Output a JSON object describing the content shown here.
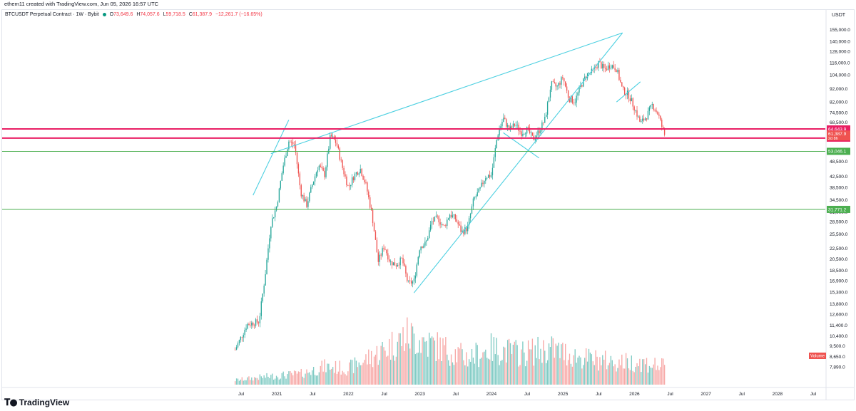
{
  "header": {
    "credit": "ethem11 created with TradingView.com, Jun 05, 2026 16:57 UTC"
  },
  "legend": {
    "symbol": "BTCUSDT Perpetual Contract · 1W · Bybit",
    "o_label": "O",
    "o_value": "73,649.6",
    "h_label": "H",
    "h_value": "74,057.6",
    "l_label": "L",
    "l_value": "59,718.5",
    "c_label": "C",
    "c_value": "61,387.9",
    "change": "−12,261.7 (−16.65%)"
  },
  "axis_unit": "USDT",
  "brand": {
    "name": "TradingView",
    "logo_icon": "tradingview-logo-icon"
  },
  "colors": {
    "up": "#26a69a",
    "down": "#ef5350",
    "trend": "#4dd0e1",
    "magenta": "#e91e63",
    "green_line": "#4caf50",
    "volume_label_bg": "#ef5350"
  },
  "chart_data": {
    "type": "candlestick",
    "y_scale": "log",
    "ylim": [
      7200,
      165000
    ],
    "x_range": [
      "2020-04",
      "2028-11"
    ],
    "y_ticks": [
      "155,000.0",
      "140,000.0",
      "128,000.0",
      "116,000.0",
      "104,000.0",
      "92,000.0",
      "82,000.0",
      "74,500.0",
      "68,500.0",
      "48,500.0",
      "42,500.0",
      "38,500.0",
      "34,500.0",
      "31,000.0",
      "28,500.0",
      "25,500.0",
      "22,500.0",
      "20,500.0",
      "18,500.0",
      "16,900.0",
      "15,300.0",
      "13,800.0",
      "12,600.0",
      "11,400.0",
      "10,400.0",
      "9,500.0",
      "8,650.0",
      "7,890.0"
    ],
    "y_tick_values": [
      155000,
      140000,
      128000,
      116000,
      104000,
      92000,
      82000,
      74500,
      68500,
      48500,
      42500,
      38500,
      34500,
      31000,
      28500,
      25500,
      22500,
      20500,
      18500,
      16900,
      15300,
      13800,
      12600,
      11400,
      10400,
      9500,
      8650,
      7890
    ],
    "x_ticks": [
      {
        "label": "Jul",
        "date": "2020-07"
      },
      {
        "label": "2021",
        "date": "2021-01"
      },
      {
        "label": "Jul",
        "date": "2021-07"
      },
      {
        "label": "2022",
        "date": "2022-01"
      },
      {
        "label": "Jul",
        "date": "2022-07"
      },
      {
        "label": "2023",
        "date": "2023-01"
      },
      {
        "label": "Jul",
        "date": "2023-07"
      },
      {
        "label": "2024",
        "date": "2024-01"
      },
      {
        "label": "Jul",
        "date": "2024-07"
      },
      {
        "label": "2025",
        "date": "2025-01"
      },
      {
        "label": "Jul",
        "date": "2025-07"
      },
      {
        "label": "2026",
        "date": "2026-01"
      },
      {
        "label": "Jul",
        "date": "2026-07"
      },
      {
        "label": "2027",
        "date": "2027-01"
      },
      {
        "label": "Jul",
        "date": "2027-07"
      },
      {
        "label": "2028",
        "date": "2028-01"
      },
      {
        "label": "Jul",
        "date": "2028-07"
      }
    ],
    "price_path": [
      [
        "2020-06",
        9200
      ],
      [
        "2020-08",
        11500
      ],
      [
        "2020-10",
        11800
      ],
      [
        "2020-11",
        17500
      ],
      [
        "2020-12",
        28000
      ],
      [
        "2021-01",
        33000
      ],
      [
        "2021-02",
        46000
      ],
      [
        "2021-03",
        58000
      ],
      [
        "2021-04",
        56000
      ],
      [
        "2021-05",
        37000
      ],
      [
        "2021-06",
        33000
      ],
      [
        "2021-07",
        40000
      ],
      [
        "2021-08",
        47000
      ],
      [
        "2021-09",
        43000
      ],
      [
        "2021-10",
        61000
      ],
      [
        "2021-11",
        57000
      ],
      [
        "2021-12",
        46000
      ],
      [
        "2022-01",
        38500
      ],
      [
        "2022-02",
        43000
      ],
      [
        "2022-03",
        45500
      ],
      [
        "2022-04",
        39000
      ],
      [
        "2022-05",
        30000
      ],
      [
        "2022-06",
        20000
      ],
      [
        "2022-07",
        23000
      ],
      [
        "2022-08",
        20000
      ],
      [
        "2022-09",
        19500
      ],
      [
        "2022-10",
        20500
      ],
      [
        "2022-11",
        16500
      ],
      [
        "2022-12",
        16800
      ],
      [
        "2023-01",
        23000
      ],
      [
        "2023-02",
        23500
      ],
      [
        "2023-03",
        28500
      ],
      [
        "2023-04",
        29500
      ],
      [
        "2023-05",
        27000
      ],
      [
        "2023-06",
        30500
      ],
      [
        "2023-07",
        29200
      ],
      [
        "2023-08",
        26000
      ],
      [
        "2023-09",
        27000
      ],
      [
        "2023-10",
        34500
      ],
      [
        "2023-11",
        37500
      ],
      [
        "2023-12",
        42500
      ],
      [
        "2024-01",
        43000
      ],
      [
        "2024-02",
        61000
      ],
      [
        "2024-03",
        71000
      ],
      [
        "2024-04",
        64000
      ],
      [
        "2024-05",
        67500
      ],
      [
        "2024-06",
        62500
      ],
      [
        "2024-07",
        64500
      ],
      [
        "2024-08",
        59000
      ],
      [
        "2024-09",
        63500
      ],
      [
        "2024-10",
        70500
      ],
      [
        "2024-11",
        96000
      ],
      [
        "2024-12",
        93500
      ],
      [
        "2025-01",
        102000
      ],
      [
        "2025-02",
        84500
      ],
      [
        "2025-03",
        82500
      ],
      [
        "2025-04",
        94500
      ],
      [
        "2025-05",
        104500
      ],
      [
        "2025-06",
        107500
      ],
      [
        "2025-07",
        116000
      ],
      [
        "2025-08",
        109000
      ],
      [
        "2025-09",
        114000
      ],
      [
        "2025-10",
        110000
      ],
      [
        "2025-11",
        91000
      ],
      [
        "2025-12",
        87500
      ],
      [
        "2026-01",
        78000
      ],
      [
        "2026-02",
        68000
      ],
      [
        "2026-03",
        72000
      ],
      [
        "2026-04",
        80000
      ],
      [
        "2026-05",
        73600
      ],
      [
        "2026-06",
        61388
      ]
    ],
    "volume_approx": [
      [
        "2020-06",
        0.05
      ],
      [
        "2020-10",
        0.08
      ],
      [
        "2021-01",
        0.1
      ],
      [
        "2021-05",
        0.12
      ],
      [
        "2021-09",
        0.2
      ],
      [
        "2022-01",
        0.18
      ],
      [
        "2022-06",
        0.35
      ],
      [
        "2022-11",
        0.55
      ],
      [
        "2023-03",
        0.45
      ],
      [
        "2023-09",
        0.3
      ],
      [
        "2024-01",
        0.4
      ],
      [
        "2024-06",
        0.35
      ],
      [
        "2024-11",
        0.4
      ],
      [
        "2025-04",
        0.3
      ],
      [
        "2025-10",
        0.25
      ],
      [
        "2026-02",
        0.25
      ],
      [
        "2026-06",
        0.2
      ]
    ],
    "horizontal_levels": [
      {
        "price": 64643.9,
        "label": "64,643.9",
        "color": "#e91e63"
      },
      {
        "price": 59598.3,
        "label": "59,598.3",
        "color": "#e91e63"
      },
      {
        "price": 53046.1,
        "label": "53,046.1",
        "color": "#4caf50"
      },
      {
        "price": 31771.2,
        "label": "31,771.2",
        "color": "#4caf50"
      }
    ],
    "last_price": {
      "price": 61387.9,
      "label": "61,387.9",
      "countdown": "2d 8h"
    },
    "trendlines": [
      {
        "from": [
          "2020-12",
          52000
        ],
        "to": [
          "2025-11",
          151000
        ]
      },
      {
        "from": [
          "2022-12",
          15200
        ],
        "to": [
          "2025-11",
          151000
        ]
      },
      {
        "from": [
          "2020-09",
          36000
        ],
        "to": [
          "2021-03",
          70000
        ]
      },
      {
        "from": [
          "2024-03",
          62500
        ],
        "to": [
          "2024-09",
          50000
        ]
      },
      {
        "from": [
          "2025-10",
          82000
        ],
        "to": [
          "2026-02",
          98000
        ]
      }
    ],
    "volume_label": "Volume"
  }
}
